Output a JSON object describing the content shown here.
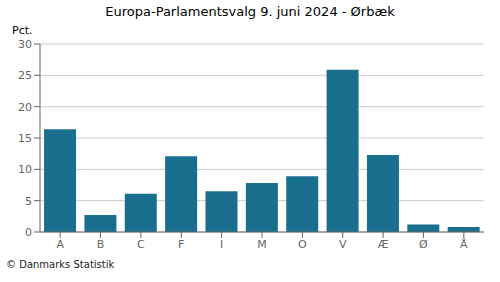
{
  "chart_data": {
    "type": "bar",
    "title": "Europa-Parlamentsvalg 9. juni 2024 - Ørbæk",
    "ylabel": "Pct.",
    "annotations": [
      "© Danmarks Statistik"
    ],
    "categories": [
      "A",
      "B",
      "C",
      "F",
      "I",
      "M",
      "O",
      "V",
      "Æ",
      "Ø",
      "Å"
    ],
    "values": [
      16.4,
      2.7,
      6.1,
      12.1,
      6.5,
      7.8,
      8.9,
      25.9,
      12.3,
      1.2,
      0.8
    ],
    "color": "#1a6e8e",
    "ylim": [
      0,
      30
    ],
    "yticks": [
      0,
      5,
      10,
      15,
      20,
      25,
      30
    ],
    "grid": true
  }
}
